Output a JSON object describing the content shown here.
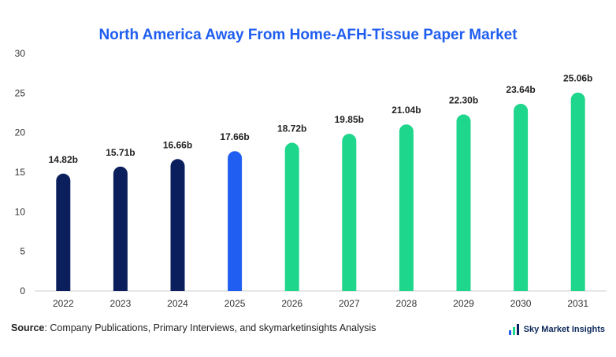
{
  "chart_data": {
    "type": "bar",
    "title": "North America Away From Home-AFH-Tissue Paper Market",
    "categories": [
      "2022",
      "2023",
      "2024",
      "2025",
      "2026",
      "2027",
      "2028",
      "2029",
      "2030",
      "2031"
    ],
    "values": [
      14.82,
      15.71,
      16.66,
      17.66,
      18.72,
      19.85,
      21.04,
      22.3,
      23.64,
      25.06
    ],
    "data_labels": [
      "14.82b",
      "15.71b",
      "16.66b",
      "17.66b",
      "18.72b",
      "19.85b",
      "21.04b",
      "22.30b",
      "23.64b",
      "25.06b"
    ],
    "bar_colors": [
      "#0b1f5c",
      "#0b1f5c",
      "#0b1f5c",
      "#1f5ef0",
      "#1ed68c",
      "#1ed68c",
      "#1ed68c",
      "#1ed68c",
      "#1ed68c",
      "#1ed68c"
    ],
    "ylim": [
      0,
      30
    ],
    "yticks": [
      0,
      5,
      10,
      15,
      20,
      25,
      30
    ],
    "xlabel": "",
    "ylabel": "",
    "grid": false,
    "legend": "none"
  },
  "footer": {
    "source_label": "Source",
    "source_text": ": Company Publications, Primary Interviews, and skymarketinsights Analysis",
    "brand_name": "Sky Market Insights",
    "brand_icon": "sky-market-insights-logo-icon"
  }
}
